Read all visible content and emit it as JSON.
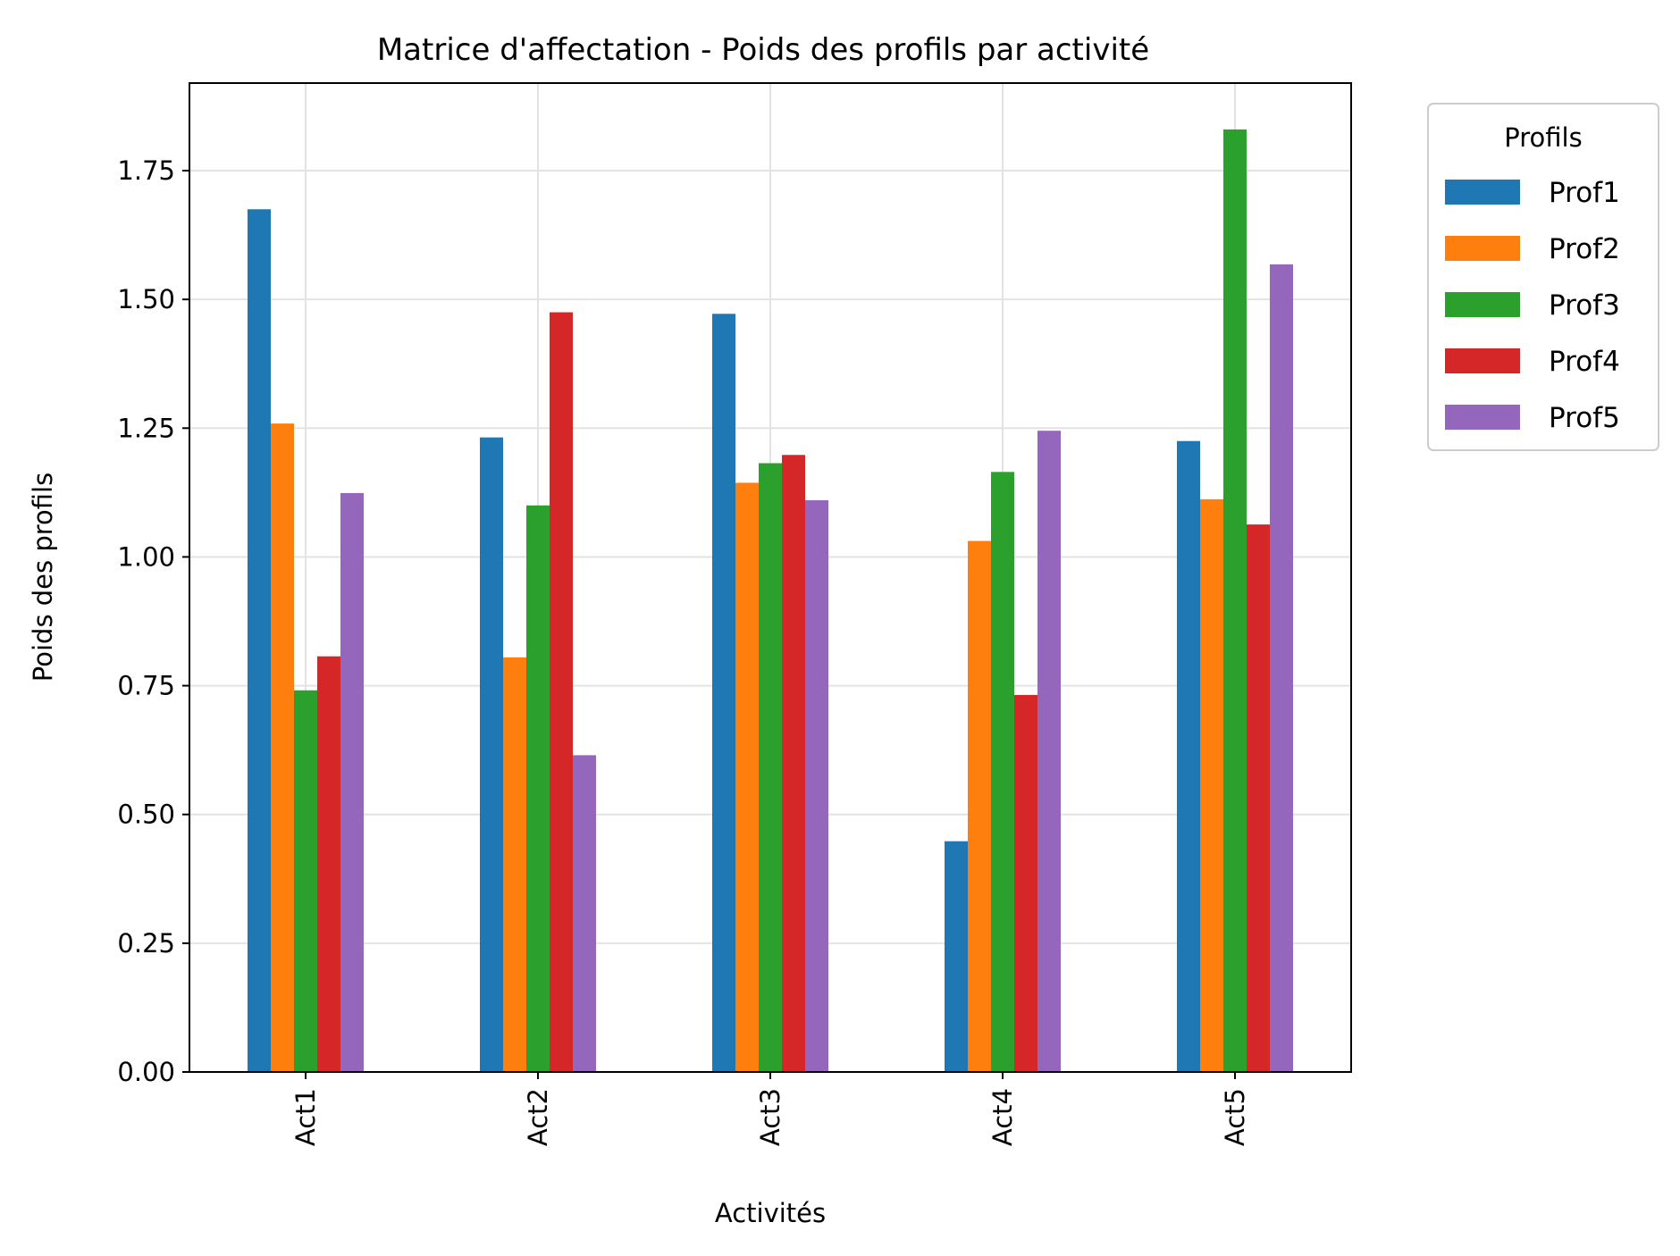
{
  "chart_data": {
    "type": "bar",
    "title": "Matrice d'affectation - Poids des profils par activité",
    "xlabel": "Activités",
    "ylabel": "Poids des profils",
    "categories": [
      "Act1",
      "Act2",
      "Act3",
      "Act4",
      "Act5"
    ],
    "ylim": [
      0,
      1.92
    ],
    "yticks": [
      "0.00",
      "0.25",
      "0.50",
      "0.75",
      "1.00",
      "1.25",
      "1.50",
      "1.75"
    ],
    "ytick_values": [
      0,
      0.25,
      0.5,
      0.75,
      1.0,
      1.25,
      1.5,
      1.75
    ],
    "grid": true,
    "legend": {
      "title": "Profils",
      "placement": "outside-right"
    },
    "series": [
      {
        "name": "Prof1",
        "color": "#1f77b4",
        "values": [
          1.675,
          1.232,
          1.472,
          0.448,
          1.225
        ]
      },
      {
        "name": "Prof2",
        "color": "#ff7f0e",
        "values": [
          1.259,
          0.805,
          1.144,
          1.031,
          1.112
        ]
      },
      {
        "name": "Prof3",
        "color": "#2ca02c",
        "values": [
          0.741,
          1.1,
          1.182,
          1.165,
          1.83
        ]
      },
      {
        "name": "Prof4",
        "color": "#d62728",
        "values": [
          0.807,
          1.475,
          1.198,
          0.732,
          1.063
        ]
      },
      {
        "name": "Prof5",
        "color": "#9467bd",
        "values": [
          1.124,
          0.615,
          1.11,
          1.245,
          1.568
        ]
      }
    ]
  }
}
